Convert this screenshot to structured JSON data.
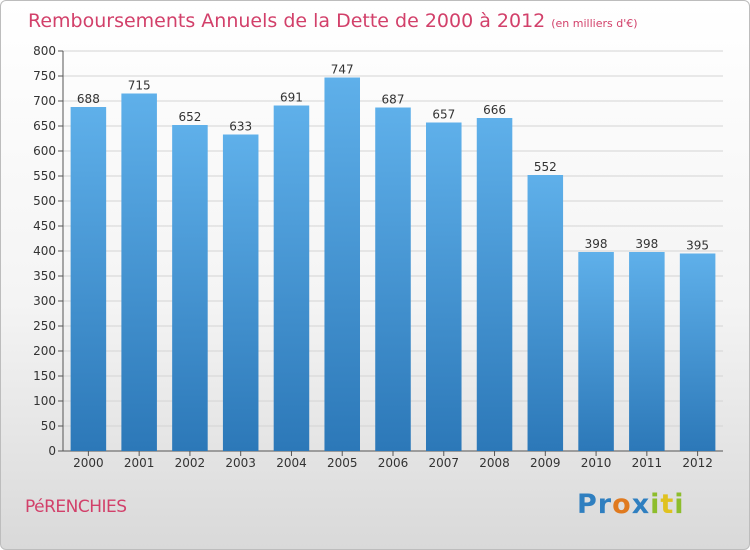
{
  "chart_data": {
    "type": "bar",
    "title": "Remboursements Annuels de la Dette de 2000 à 2012",
    "subtitle": "(en milliers d'€)",
    "categories": [
      "2000",
      "2001",
      "2002",
      "2003",
      "2004",
      "2005",
      "2006",
      "2007",
      "2008",
      "2009",
      "2010",
      "2011",
      "2012"
    ],
    "values": [
      688,
      715,
      652,
      633,
      691,
      747,
      687,
      657,
      666,
      552,
      398,
      398,
      395
    ],
    "ylim": [
      0,
      800
    ],
    "yticks": [
      0,
      50,
      100,
      150,
      200,
      250,
      300,
      350,
      400,
      450,
      500,
      550,
      600,
      650,
      700,
      750,
      800
    ],
    "grid": true,
    "bar_color": "#4a9ee0"
  },
  "footer": {
    "commune": "PéRENCHIES"
  },
  "logo": {
    "text": "Proxiti",
    "letters": [
      {
        "ch": "P",
        "color": "#2f7fc0"
      },
      {
        "ch": "r",
        "color": "#2f7fc0"
      },
      {
        "ch": "o",
        "color": "#e07a1f"
      },
      {
        "ch": "x",
        "color": "#2f7fc0"
      },
      {
        "ch": "i",
        "color": "#8dbd2c"
      },
      {
        "ch": "t",
        "color": "#e0c21f"
      },
      {
        "ch": "i",
        "color": "#8dbd2c"
      }
    ]
  }
}
